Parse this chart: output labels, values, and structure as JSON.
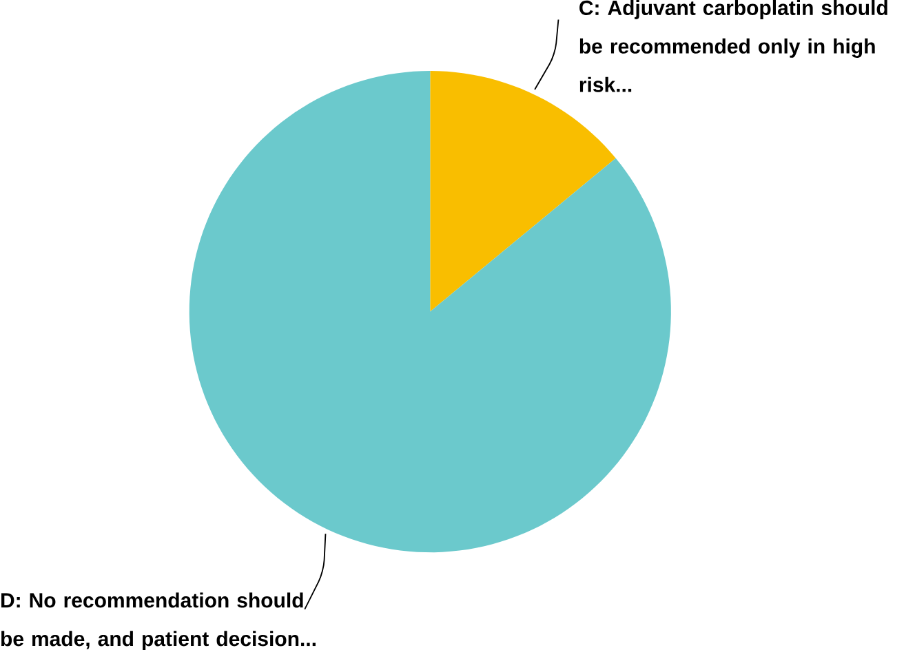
{
  "chart_data": {
    "type": "pie",
    "categories": [
      "C: Adjuvant carboplatin should be recommended only in high risk...",
      "D: No recommendation should be made, and patient decision..."
    ],
    "values": [
      14,
      86
    ],
    "colors": [
      "#f9be00",
      "#6bc9cc"
    ]
  }
}
